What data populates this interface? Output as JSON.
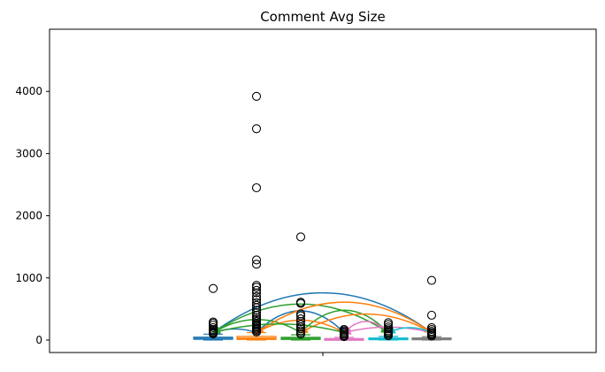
{
  "chart_data": {
    "type": "box",
    "title": "Comment Avg Size",
    "xlabel": "",
    "ylabel": "",
    "ylim": [
      -200,
      5000
    ],
    "yticks": [
      0,
      1000,
      2000,
      3000,
      4000
    ],
    "xticks": [
      ""
    ],
    "grid": false,
    "legend": "none",
    "series": [
      {
        "color": "#1f77b4",
        "q1": 12,
        "median": 25,
        "q3": 48,
        "whisker_low": 0,
        "whisker_high": 95,
        "outliers": [
          100,
          115,
          130,
          150,
          170,
          200,
          240,
          270,
          290,
          830
        ]
      },
      {
        "color": "#ff7f0e",
        "q1": 10,
        "median": 30,
        "q3": 60,
        "whisker_low": 0,
        "whisker_high": 120,
        "outliers": [
          130,
          150,
          170,
          190,
          210,
          230,
          250,
          270,
          300,
          330,
          360,
          400,
          440,
          480,
          520,
          560,
          600,
          650,
          700,
          760,
          800,
          850,
          880,
          1220,
          1290,
          2450,
          3400,
          3920
        ]
      },
      {
        "color": "#2ca02c",
        "q1": 10,
        "median": 22,
        "q3": 45,
        "whisker_low": 0,
        "whisker_high": 85,
        "outliers": [
          95,
          120,
          150,
          180,
          210,
          250,
          300,
          340,
          390,
          420,
          590,
          610,
          1660
        ]
      },
      {
        "color": "#e377c2",
        "q1": 5,
        "median": 12,
        "q3": 25,
        "whisker_low": 0,
        "whisker_high": 45,
        "outliers": [
          55,
          70,
          90,
          110,
          130,
          150,
          170
        ]
      },
      {
        "color": "#17becf",
        "q1": 5,
        "median": 15,
        "q3": 35,
        "whisker_low": 0,
        "whisker_high": 60,
        "outliers": [
          70,
          90,
          110,
          130,
          150,
          180,
          210,
          250,
          280
        ]
      },
      {
        "color": "#7f7f7f",
        "q1": 5,
        "median": 15,
        "q3": 35,
        "whisker_low": 0,
        "whisker_high": 55,
        "outliers": [
          65,
          80,
          100,
          120,
          140,
          170,
          200,
          400,
          960
        ]
      }
    ],
    "arcs": [
      {
        "from": 0,
        "to": 5,
        "peak": 760,
        "color": "#1f77b4"
      },
      {
        "from": 0,
        "to": 4,
        "peak": 580,
        "color": "#2ca02c"
      },
      {
        "from": 1,
        "to": 3,
        "peak": 470,
        "color": "#1f77b4"
      },
      {
        "from": 1,
        "to": 0,
        "peak": 180,
        "color": "#1f77b4"
      },
      {
        "from": 2,
        "to": 0,
        "peak": 330,
        "color": "#2ca02c"
      },
      {
        "from": 1,
        "to": 5,
        "peak": 610,
        "color": "#ff7f0e"
      },
      {
        "from": 2,
        "to": 4,
        "peak": 480,
        "color": "#2ca02c"
      },
      {
        "from": 3,
        "to": 1,
        "peak": 320,
        "color": "#ff7f0e"
      },
      {
        "from": 5,
        "to": 2,
        "peak": 420,
        "color": "#ff7f0e"
      },
      {
        "from": 3,
        "to": 0,
        "peak": 260,
        "color": "#2ca02c"
      },
      {
        "from": 4,
        "to": 3,
        "peak": 300,
        "color": "#e377c2"
      },
      {
        "from": 5,
        "to": 3,
        "peak": 210,
        "color": "#e377c2"
      },
      {
        "from": 5,
        "to": 4,
        "peak": 200,
        "color": "#17becf"
      }
    ]
  }
}
